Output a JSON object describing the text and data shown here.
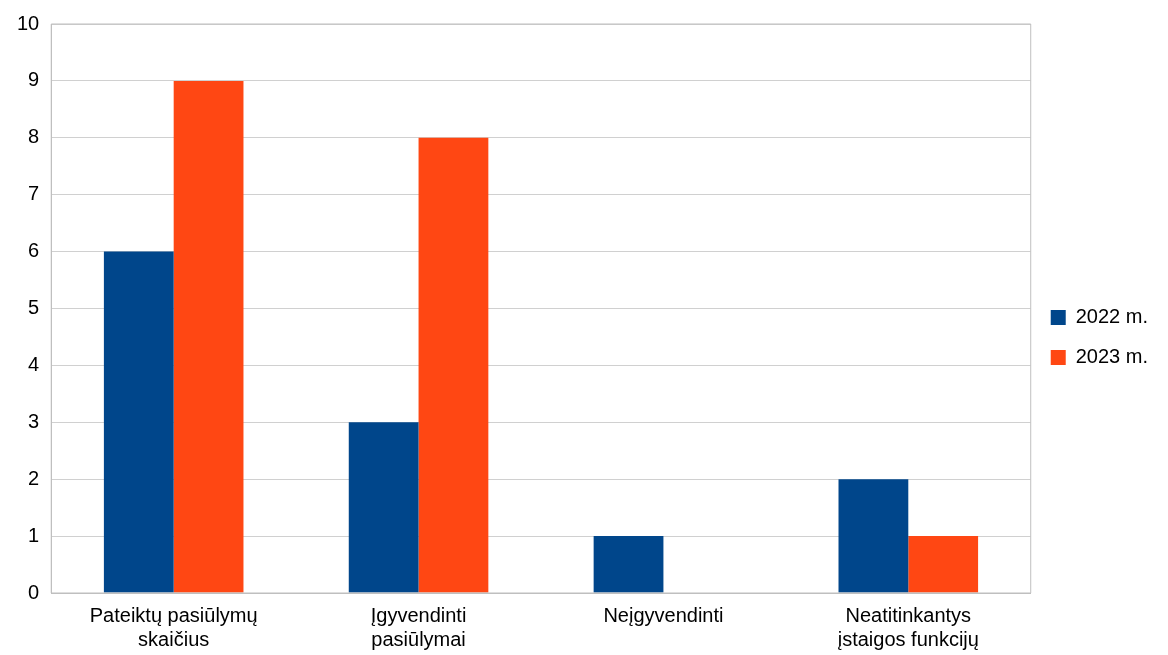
{
  "chart_data": {
    "type": "bar",
    "categories": [
      "Pateiktų pasiūlymų skaičius",
      "Įgyvendinti pasiūlymai",
      "Neįgyvendinti",
      "Neatitinkantys įstaigos funkcijų"
    ],
    "series": [
      {
        "name": "2022 m.",
        "color": "#00468b",
        "values": [
          6,
          3,
          1,
          2
        ]
      },
      {
        "name": "2023 m.",
        "color": "#ff4713",
        "values": [
          9,
          8,
          0,
          1
        ]
      }
    ],
    "ylim": [
      0,
      10
    ],
    "yticks": [
      0,
      1,
      2,
      3,
      4,
      5,
      6,
      7,
      8,
      9,
      10
    ],
    "grid": "y",
    "legend": "right"
  }
}
